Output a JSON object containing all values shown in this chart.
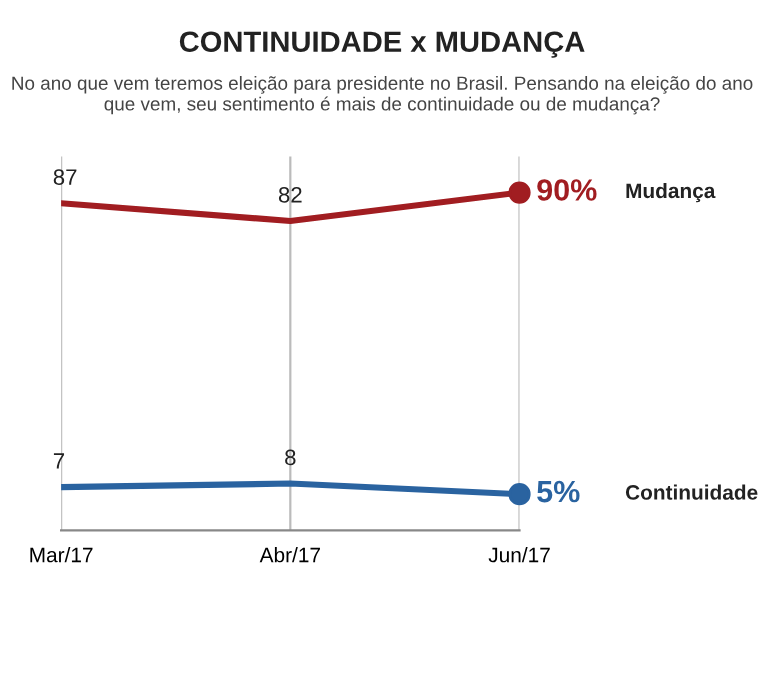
{
  "chart_data": {
    "type": "line",
    "title": "CONTINUIDADE x MUDANÇA",
    "subtitle": "No ano que vem teremos eleição para presidente no Brasil. Pensando na eleição do ano que vem, seu sentimento é mais de continuidade ou de mudança?",
    "categories": [
      "Mar/17",
      "Abr/17",
      "Jun/17"
    ],
    "series": [
      {
        "name": "Mudança",
        "color": "#a11d21",
        "values": [
          87,
          82,
          90
        ],
        "value_labels": [
          "87",
          "82",
          "90%"
        ]
      },
      {
        "name": "Continuidade",
        "color": "#2a63a0",
        "values": [
          7,
          8,
          5
        ],
        "value_labels": [
          "7",
          "8",
          "5%"
        ]
      }
    ],
    "grid": "x",
    "line_style": "solid",
    "legend": false,
    "tick_labels": "x"
  }
}
